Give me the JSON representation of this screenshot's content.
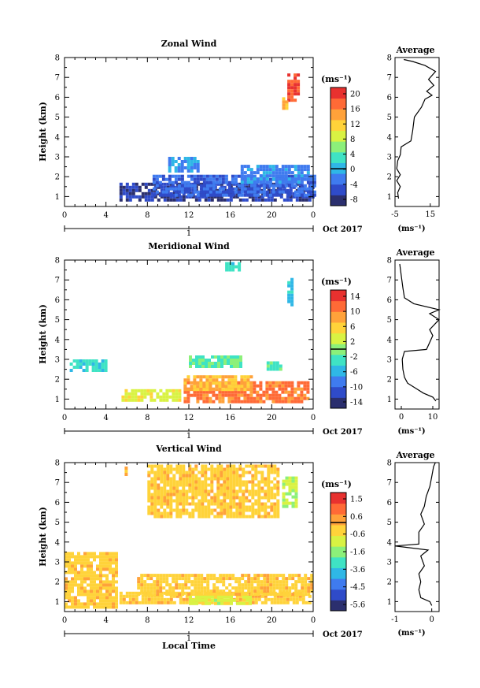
{
  "chart_data": [
    {
      "type": "heatmap",
      "title": "Zonal Wind",
      "ylabel": "Height (km)",
      "xlabel": "",
      "xlim": [
        0,
        24
      ],
      "ylim": [
        0.5,
        8
      ],
      "xticks": [
        "0",
        "4",
        "8",
        "12",
        "16",
        "20",
        "0"
      ],
      "yticks": [
        "1",
        "2",
        "3",
        "4",
        "5",
        "6",
        "7",
        "8"
      ],
      "date_day": "1",
      "date_label": "Oct 2017",
      "colorbar": {
        "unit": "(ms⁻¹)",
        "ticks": [
          "20",
          "16",
          "12",
          "8",
          "4",
          "0",
          "-4",
          "-8"
        ],
        "min": -10,
        "max": 22
      },
      "regions": [
        {
          "x0": 5.3,
          "x1": 24,
          "y0": 0.9,
          "y1": 1.7,
          "value": -8
        },
        {
          "x0": 8.5,
          "x1": 24,
          "y0": 1.0,
          "y1": 2.1,
          "value": -5
        },
        {
          "x0": 17,
          "x1": 23.5,
          "y0": 1.8,
          "y1": 2.6,
          "value": -3
        },
        {
          "x0": 10,
          "x1": 13,
          "y0": 2.3,
          "y1": 3.0,
          "value": -2
        },
        {
          "x0": 21.5,
          "x1": 22.5,
          "y0": 5.8,
          "y1": 7.2,
          "value": 20
        },
        {
          "x0": 21.0,
          "x1": 21.6,
          "y0": 5.4,
          "y1": 6.0,
          "value": 14
        }
      ],
      "profile": {
        "title": "Average",
        "xlabel": "(ms⁻¹)",
        "xticks": [
          "-5",
          "15"
        ],
        "xlim": [
          -5,
          20
        ],
        "points": [
          [
            -3,
            0.9
          ],
          [
            -3.5,
            1.2
          ],
          [
            -2,
            1.5
          ],
          [
            -4,
            1.8
          ],
          [
            -2,
            2.1
          ],
          [
            -4,
            2.4
          ],
          [
            -3.5,
            2.8
          ],
          [
            -2,
            3.1
          ],
          [
            -1.5,
            3.5
          ],
          [
            4,
            3.8
          ],
          [
            5,
            4.3
          ],
          [
            6,
            5.0
          ],
          [
            10,
            5.5
          ],
          [
            12,
            5.9
          ],
          [
            16,
            6.1
          ],
          [
            13,
            6.3
          ],
          [
            17,
            6.6
          ],
          [
            14,
            6.9
          ],
          [
            18,
            7.3
          ],
          [
            12,
            7.6
          ],
          [
            5,
            7.8
          ],
          [
            0,
            7.9
          ]
        ]
      }
    },
    {
      "type": "heatmap",
      "title": "Meridional Wind",
      "ylabel": "Height (km)",
      "xlabel": "",
      "xlim": [
        0,
        24
      ],
      "ylim": [
        0.5,
        8
      ],
      "xticks": [
        "0",
        "4",
        "8",
        "12",
        "16",
        "20",
        "0"
      ],
      "yticks": [
        "1",
        "2",
        "3",
        "4",
        "5",
        "6",
        "7",
        "8"
      ],
      "date_day": "1",
      "date_label": "Oct 2017",
      "colorbar": {
        "unit": "(ms⁻¹)",
        "ticks": [
          "14",
          "10",
          "6",
          "2",
          "-2",
          "-6",
          "-10",
          "-14"
        ],
        "min": -16,
        "max": 16
      },
      "regions": [
        {
          "x0": 5.5,
          "x1": 11,
          "y0": 0.9,
          "y1": 1.5,
          "value": 4
        },
        {
          "x0": 11.5,
          "x1": 23.5,
          "y0": 0.9,
          "y1": 1.9,
          "value": 12
        },
        {
          "x0": 11.5,
          "x1": 18,
          "y0": 1.5,
          "y1": 2.2,
          "value": 8
        },
        {
          "x0": 0.5,
          "x1": 4,
          "y0": 2.5,
          "y1": 3.0,
          "value": -4
        },
        {
          "x0": 12,
          "x1": 17,
          "y0": 2.6,
          "y1": 3.2,
          "value": -2
        },
        {
          "x0": 19.5,
          "x1": 21,
          "y0": 2.5,
          "y1": 2.9,
          "value": -3
        },
        {
          "x0": 21.5,
          "x1": 22.1,
          "y0": 5.7,
          "y1": 7.1,
          "value": -6
        },
        {
          "x0": 15.5,
          "x1": 17,
          "y0": 7.5,
          "y1": 7.9,
          "value": -3
        }
      ],
      "profile": {
        "title": "Average",
        "xlabel": "(ms⁻¹)",
        "xticks": [
          "0",
          "10"
        ],
        "xlim": [
          -2,
          12
        ],
        "points": [
          [
            11,
            0.9
          ],
          [
            10,
            1.1
          ],
          [
            7,
            1.3
          ],
          [
            5,
            1.5
          ],
          [
            2,
            1.8
          ],
          [
            1,
            2.1
          ],
          [
            0.5,
            2.5
          ],
          [
            0.3,
            3.0
          ],
          [
            1,
            3.4
          ],
          [
            8,
            3.5
          ],
          [
            10,
            4.2
          ],
          [
            9,
            4.5
          ],
          [
            12,
            5.0
          ],
          [
            9,
            5.3
          ],
          [
            12,
            5.5
          ],
          [
            4,
            5.8
          ],
          [
            1,
            6.1
          ],
          [
            0.5,
            6.6
          ],
          [
            0,
            7.2
          ],
          [
            -0.5,
            7.8
          ]
        ]
      }
    },
    {
      "type": "heatmap",
      "title": "Vertical Wind",
      "ylabel": "Height (km)",
      "xlabel": "Local Time",
      "xlim": [
        0,
        24
      ],
      "ylim": [
        0.5,
        8
      ],
      "xticks": [
        "0",
        "4",
        "8",
        "12",
        "16",
        "20",
        "0"
      ],
      "yticks": [
        "1",
        "2",
        "3",
        "4",
        "5",
        "6",
        "7",
        "8"
      ],
      "date_day": "1",
      "date_label": "Oct 2017",
      "colorbar": {
        "unit": "(ms⁻¹)",
        "ticks": [
          "1.5",
          "0.6",
          "-0.6",
          "-1.6",
          "-3.6",
          "-4.5",
          "-5.6"
        ],
        "min": -6.2,
        "max": 2.1
      },
      "regions": [
        {
          "x0": 0,
          "x1": 5,
          "y0": 0.8,
          "y1": 3.5,
          "value": -0.3
        },
        {
          "x0": 5.3,
          "x1": 23.8,
          "y0": 0.9,
          "y1": 1.5,
          "value": -0.3
        },
        {
          "x0": 7,
          "x1": 23.8,
          "y0": 1.4,
          "y1": 2.4,
          "value": -0.3
        },
        {
          "x0": 12,
          "x1": 18,
          "y0": 0.9,
          "y1": 1.3,
          "value": -1.2
        },
        {
          "x0": 8,
          "x1": 20.5,
          "y0": 5.3,
          "y1": 7.9,
          "value": -0.3
        },
        {
          "x0": 21,
          "x1": 22.5,
          "y0": 5.8,
          "y1": 7.3,
          "value": -1.5
        },
        {
          "x0": 5.8,
          "x1": 6.0,
          "y0": 7.4,
          "y1": 7.8,
          "value": 0.3
        }
      ],
      "profile": {
        "title": "Average",
        "xlabel": "(ms⁻¹)",
        "xticks": [
          "-1",
          "0"
        ],
        "xlim": [
          -1,
          0.2
        ],
        "points": [
          [
            0,
            0.8
          ],
          [
            -0.05,
            1.0
          ],
          [
            -0.3,
            1.2
          ],
          [
            -0.35,
            1.6
          ],
          [
            -0.3,
            2.0
          ],
          [
            -0.35,
            2.4
          ],
          [
            -0.2,
            2.8
          ],
          [
            -0.3,
            3.3
          ],
          [
            -0.1,
            3.6
          ],
          [
            -1.0,
            3.8
          ],
          [
            -0.35,
            3.9
          ],
          [
            -0.35,
            4.5
          ],
          [
            -0.2,
            4.9
          ],
          [
            -0.3,
            5.4
          ],
          [
            -0.2,
            5.8
          ],
          [
            -0.15,
            6.3
          ],
          [
            -0.05,
            6.8
          ],
          [
            0,
            7.3
          ],
          [
            0.05,
            7.8
          ],
          [
            0.1,
            8.0
          ]
        ]
      }
    }
  ],
  "colorscale": [
    "#2b2f6e",
    "#2f4bc9",
    "#3f7bef",
    "#2fb7e6",
    "#3fe3c4",
    "#8cf07a",
    "#d9f243",
    "#ffd33a",
    "#ffa23a",
    "#ff6a36",
    "#e8312f"
  ]
}
